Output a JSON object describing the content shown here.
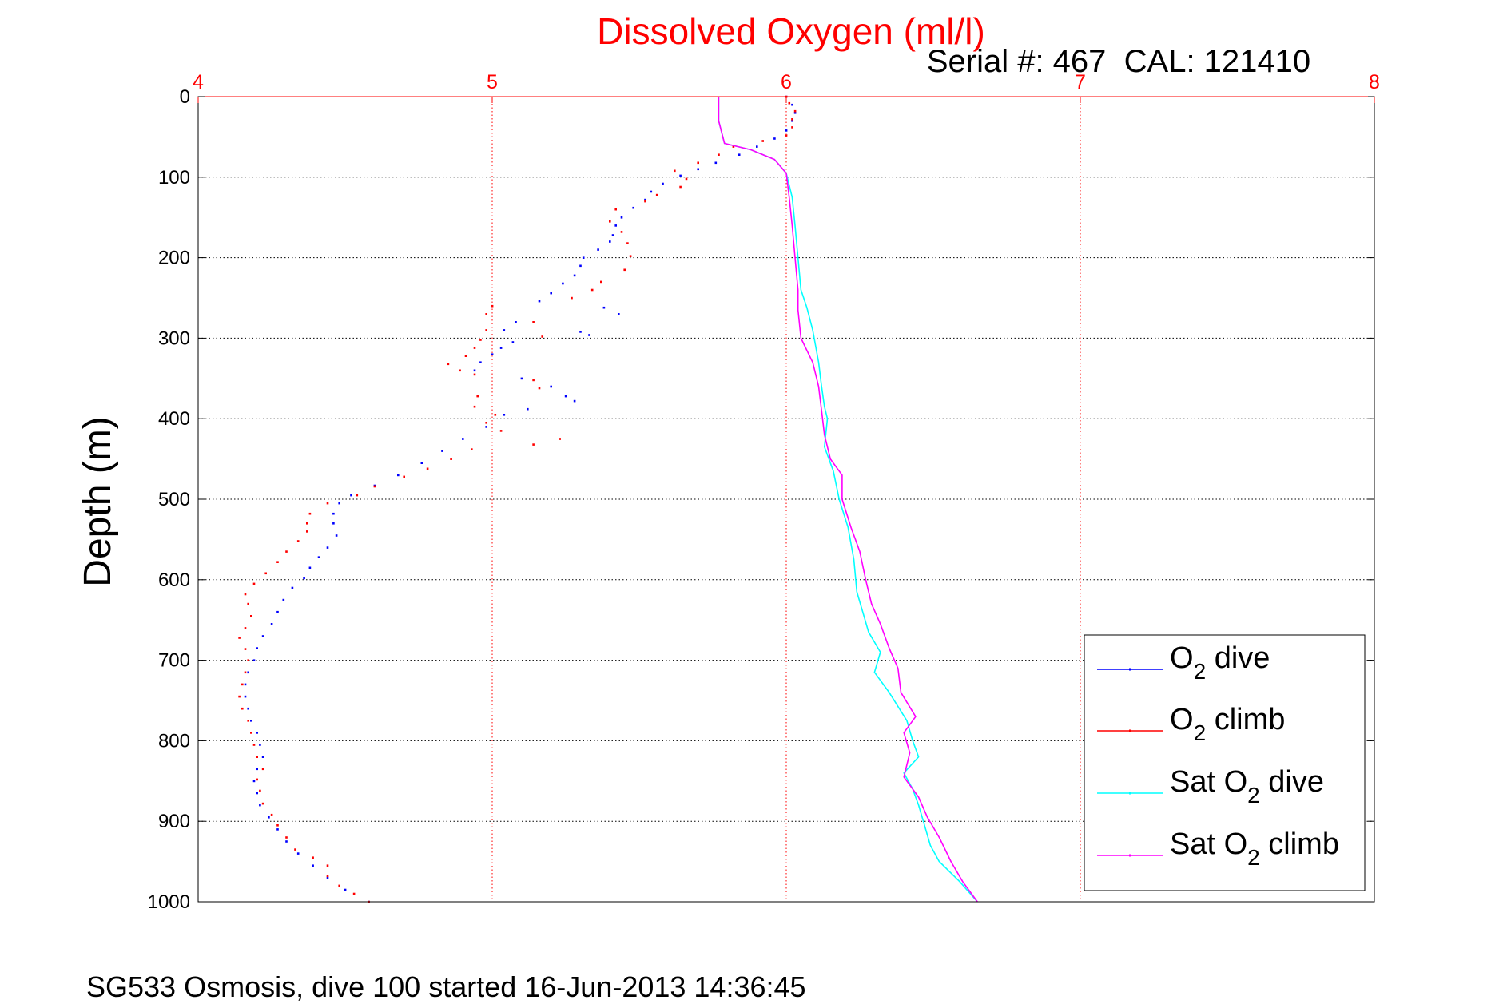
{
  "chart_data": {
    "type": "scatter",
    "title": "Dissolved Oxygen (ml/l)",
    "subtitle": "Serial #: 467  CAL: 121410",
    "ylabel": "Depth (m)",
    "footer": "SG533 Osmosis, dive 100 started 16-Jun-2013 14:36:45",
    "xlim": [
      4,
      8
    ],
    "ylim": [
      0,
      1000
    ],
    "y_reversed": true,
    "x_axis_position": "top",
    "grid": true,
    "xticks": [
      "4",
      "5",
      "6",
      "7",
      "8"
    ],
    "yticks": [
      "0",
      "100",
      "200",
      "300",
      "400",
      "500",
      "600",
      "700",
      "800",
      "900",
      "1000"
    ],
    "legend_position": "bottom-right",
    "legend": [
      {
        "main": "O",
        "sub": "2",
        "rest": " dive"
      },
      {
        "main": "O",
        "sub": "2",
        "rest": " climb"
      },
      {
        "main": "Sat O",
        "sub": "2",
        "rest": " dive"
      },
      {
        "main": "Sat O",
        "sub": "2",
        "rest": " climb"
      }
    ],
    "series": [
      {
        "name": "O2 dive",
        "color": "#0000ff",
        "style": "points",
        "points": [
          [
            6.0,
            0
          ],
          [
            6.02,
            10
          ],
          [
            6.03,
            20
          ],
          [
            6.02,
            30
          ],
          [
            6.0,
            42
          ],
          [
            5.96,
            52
          ],
          [
            5.9,
            62
          ],
          [
            5.84,
            72
          ],
          [
            5.76,
            82
          ],
          [
            5.7,
            90
          ],
          [
            5.64,
            98
          ],
          [
            5.58,
            108
          ],
          [
            5.54,
            118
          ],
          [
            5.52,
            128
          ],
          [
            5.48,
            138
          ],
          [
            5.44,
            150
          ],
          [
            5.42,
            160
          ],
          [
            5.41,
            172
          ],
          [
            5.4,
            180
          ],
          [
            5.36,
            190
          ],
          [
            5.31,
            200
          ],
          [
            5.3,
            210
          ],
          [
            5.28,
            222
          ],
          [
            5.24,
            232
          ],
          [
            5.2,
            244
          ],
          [
            5.16,
            254
          ],
          [
            5.38,
            262
          ],
          [
            5.43,
            270
          ],
          [
            5.08,
            280
          ],
          [
            5.04,
            290
          ],
          [
            5.3,
            292
          ],
          [
            5.33,
            296
          ],
          [
            5.07,
            305
          ],
          [
            5.03,
            312
          ],
          [
            5.0,
            320
          ],
          [
            4.96,
            330
          ],
          [
            4.94,
            340
          ],
          [
            5.1,
            350
          ],
          [
            5.2,
            360
          ],
          [
            5.25,
            372
          ],
          [
            5.28,
            378
          ],
          [
            5.12,
            388
          ],
          [
            5.04,
            395
          ],
          [
            4.98,
            410
          ],
          [
            4.9,
            425
          ],
          [
            4.83,
            440
          ],
          [
            4.76,
            455
          ],
          [
            4.68,
            470
          ],
          [
            4.6,
            483
          ],
          [
            4.52,
            495
          ],
          [
            4.48,
            505
          ],
          [
            4.46,
            518
          ],
          [
            4.46,
            530
          ],
          [
            4.47,
            545
          ],
          [
            4.44,
            560
          ],
          [
            4.41,
            572
          ],
          [
            4.38,
            585
          ],
          [
            4.36,
            598
          ],
          [
            4.32,
            610
          ],
          [
            4.29,
            625
          ],
          [
            4.27,
            640
          ],
          [
            4.25,
            655
          ],
          [
            4.22,
            670
          ],
          [
            4.2,
            685
          ],
          [
            4.19,
            700
          ],
          [
            4.17,
            715
          ],
          [
            4.16,
            730
          ],
          [
            4.16,
            745
          ],
          [
            4.17,
            760
          ],
          [
            4.18,
            775
          ],
          [
            4.2,
            790
          ],
          [
            4.21,
            805
          ],
          [
            4.22,
            820
          ],
          [
            4.2,
            835
          ],
          [
            4.19,
            850
          ],
          [
            4.2,
            865
          ],
          [
            4.21,
            880
          ],
          [
            4.24,
            895
          ],
          [
            4.27,
            910
          ],
          [
            4.3,
            925
          ],
          [
            4.34,
            940
          ],
          [
            4.39,
            955
          ],
          [
            4.44,
            970
          ],
          [
            4.5,
            985
          ],
          [
            4.58,
            1000
          ]
        ]
      },
      {
        "name": "O2 climb",
        "color": "#ff0000",
        "style": "points",
        "points": [
          [
            4.58,
            1000
          ],
          [
            4.53,
            990
          ],
          [
            4.48,
            980
          ],
          [
            4.44,
            968
          ],
          [
            4.44,
            955
          ],
          [
            4.39,
            945
          ],
          [
            4.33,
            935
          ],
          [
            4.3,
            920
          ],
          [
            4.27,
            905
          ],
          [
            4.25,
            892
          ],
          [
            4.22,
            878
          ],
          [
            4.21,
            862
          ],
          [
            4.2,
            848
          ],
          [
            4.22,
            835
          ],
          [
            4.2,
            820
          ],
          [
            4.19,
            805
          ],
          [
            4.18,
            790
          ],
          [
            4.17,
            775
          ],
          [
            4.15,
            760
          ],
          [
            4.14,
            745
          ],
          [
            4.15,
            730
          ],
          [
            4.16,
            715
          ],
          [
            4.17,
            700
          ],
          [
            4.16,
            686
          ],
          [
            4.14,
            672
          ],
          [
            4.16,
            660
          ],
          [
            4.18,
            645
          ],
          [
            4.17,
            630
          ],
          [
            4.16,
            618
          ],
          [
            4.19,
            605
          ],
          [
            4.23,
            592
          ],
          [
            4.27,
            578
          ],
          [
            4.3,
            565
          ],
          [
            4.34,
            552
          ],
          [
            4.37,
            540
          ],
          [
            4.37,
            530
          ],
          [
            4.38,
            518
          ],
          [
            4.44,
            505
          ],
          [
            4.54,
            495
          ],
          [
            4.6,
            484
          ],
          [
            4.7,
            472
          ],
          [
            4.78,
            462
          ],
          [
            4.86,
            450
          ],
          [
            4.93,
            438
          ],
          [
            5.14,
            432
          ],
          [
            5.23,
            425
          ],
          [
            5.03,
            415
          ],
          [
            4.98,
            405
          ],
          [
            5.01,
            395
          ],
          [
            4.94,
            385
          ],
          [
            4.95,
            372
          ],
          [
            5.16,
            362
          ],
          [
            5.14,
            352
          ],
          [
            4.94,
            345
          ],
          [
            4.89,
            340
          ],
          [
            4.85,
            332
          ],
          [
            4.91,
            322
          ],
          [
            4.94,
            312
          ],
          [
            4.96,
            302
          ],
          [
            5.17,
            298
          ],
          [
            4.98,
            290
          ],
          [
            5.14,
            280
          ],
          [
            4.98,
            270
          ],
          [
            5.0,
            260
          ],
          [
            5.27,
            250
          ],
          [
            5.34,
            240
          ],
          [
            5.37,
            230
          ],
          [
            5.45,
            215
          ],
          [
            5.47,
            198
          ],
          [
            5.46,
            182
          ],
          [
            5.44,
            168
          ],
          [
            5.4,
            155
          ],
          [
            5.42,
            140
          ],
          [
            5.52,
            130
          ],
          [
            5.56,
            122
          ],
          [
            5.64,
            112
          ],
          [
            5.66,
            102
          ],
          [
            5.62,
            92
          ],
          [
            5.7,
            82
          ],
          [
            5.77,
            72
          ],
          [
            5.82,
            62
          ],
          [
            5.92,
            55
          ],
          [
            6.0,
            48
          ],
          [
            6.02,
            38
          ],
          [
            6.02,
            28
          ],
          [
            6.03,
            18
          ],
          [
            6.01,
            8
          ],
          [
            6.0,
            0
          ]
        ]
      },
      {
        "name": "Sat O2 dive",
        "color": "#00ffff",
        "style": "line",
        "points": [
          [
            5.77,
            0
          ],
          [
            5.77,
            30
          ],
          [
            5.79,
            58
          ],
          [
            5.88,
            66
          ],
          [
            5.96,
            78
          ],
          [
            6.0,
            95
          ],
          [
            6.02,
            125
          ],
          [
            6.03,
            160
          ],
          [
            6.04,
            200
          ],
          [
            6.05,
            240
          ],
          [
            6.07,
            262
          ],
          [
            6.09,
            290
          ],
          [
            6.11,
            330
          ],
          [
            6.12,
            360
          ],
          [
            6.13,
            385
          ],
          [
            6.14,
            400
          ],
          [
            6.13,
            435
          ],
          [
            6.16,
            465
          ],
          [
            6.18,
            500
          ],
          [
            6.21,
            535
          ],
          [
            6.23,
            575
          ],
          [
            6.24,
            615
          ],
          [
            6.26,
            640
          ],
          [
            6.28,
            665
          ],
          [
            6.32,
            690
          ],
          [
            6.3,
            715
          ],
          [
            6.35,
            740
          ],
          [
            6.41,
            775
          ],
          [
            6.43,
            800
          ],
          [
            6.45,
            820
          ],
          [
            6.4,
            840
          ],
          [
            6.43,
            860
          ],
          [
            6.45,
            880
          ],
          [
            6.47,
            905
          ],
          [
            6.49,
            930
          ],
          [
            6.52,
            950
          ],
          [
            6.59,
            975
          ],
          [
            6.65,
            1000
          ]
        ]
      },
      {
        "name": "Sat O2 climb",
        "color": "#ff00ff",
        "style": "line",
        "points": [
          [
            5.77,
            0
          ],
          [
            5.77,
            30
          ],
          [
            5.79,
            58
          ],
          [
            5.88,
            66
          ],
          [
            5.96,
            78
          ],
          [
            6.0,
            95
          ],
          [
            6.01,
            125
          ],
          [
            6.02,
            160
          ],
          [
            6.03,
            200
          ],
          [
            6.04,
            240
          ],
          [
            6.04,
            265
          ],
          [
            6.05,
            300
          ],
          [
            6.09,
            330
          ],
          [
            6.11,
            360
          ],
          [
            6.12,
            390
          ],
          [
            6.13,
            420
          ],
          [
            6.15,
            450
          ],
          [
            6.19,
            470
          ],
          [
            6.19,
            500
          ],
          [
            6.22,
            535
          ],
          [
            6.25,
            565
          ],
          [
            6.27,
            600
          ],
          [
            6.29,
            630
          ],
          [
            6.32,
            655
          ],
          [
            6.35,
            685
          ],
          [
            6.38,
            710
          ],
          [
            6.39,
            740
          ],
          [
            6.44,
            770
          ],
          [
            6.4,
            790
          ],
          [
            6.42,
            815
          ],
          [
            6.4,
            845
          ],
          [
            6.45,
            870
          ],
          [
            6.48,
            895
          ],
          [
            6.52,
            920
          ],
          [
            6.56,
            950
          ],
          [
            6.6,
            975
          ],
          [
            6.65,
            1000
          ]
        ]
      }
    ]
  }
}
